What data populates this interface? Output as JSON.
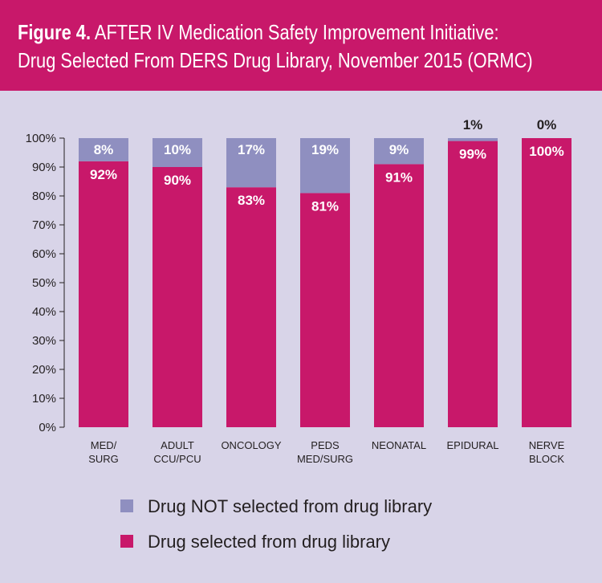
{
  "header": {
    "title_prefix": "Figure 4.",
    "title_rest": " AFTER IV Medication Safety Improvement Initiative:",
    "title_line2": "Drug Selected From DERS Drug Library, November 2015 (ORMC)"
  },
  "colors": {
    "header_bg": "#c8186a",
    "page_bg": "#d8d4e8",
    "selected": "#c8186a",
    "not_selected": "#8f8fc0"
  },
  "chart_data": {
    "type": "bar",
    "stacked": true,
    "title": "Figure 4. AFTER IV Medication Safety Improvement Initiative: Drug Selected From DERS Drug Library, November 2015 (ORMC)",
    "categories": [
      [
        "MED/",
        "SURG"
      ],
      [
        "ADULT",
        "CCU/PCU"
      ],
      [
        "ONCOLOGY"
      ],
      [
        "PEDS",
        "MED/SURG"
      ],
      [
        "NEONATAL"
      ],
      [
        "EPIDURAL"
      ],
      [
        "NERVE",
        "BLOCK"
      ]
    ],
    "series": [
      {
        "name": "Drug selected from drug library",
        "values": [
          92,
          90,
          83,
          81,
          91,
          99,
          100
        ],
        "labels": [
          "92%",
          "90%",
          "83%",
          "81%",
          "91%",
          "99%",
          "100%"
        ]
      },
      {
        "name": "Drug NOT selected from drug library",
        "values": [
          8,
          10,
          17,
          19,
          9,
          1,
          0
        ],
        "labels": [
          "8%",
          "10%",
          "17%",
          "19%",
          "9%",
          "1%",
          "0%"
        ]
      }
    ],
    "yticks": [
      "0%",
      "10%",
      "20%",
      "30%",
      "40%",
      "50%",
      "60%",
      "70%",
      "80%",
      "90%",
      "100%"
    ],
    "ylim": [
      0,
      100
    ],
    "grid": false,
    "legend": [
      {
        "label": "Drug NOT selected from drug library"
      },
      {
        "label": "Drug selected from drug library"
      }
    ],
    "legend_position": "bottom"
  }
}
